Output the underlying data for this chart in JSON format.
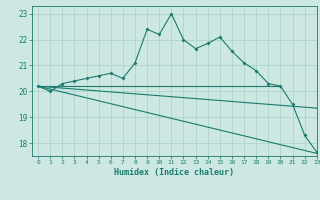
{
  "xlabel": "Humidex (Indice chaleur)",
  "bg_color": "#cde8e2",
  "line_color": "#1a7a6e",
  "grid_color": "#aed4cc",
  "xlim": [
    -0.5,
    23
  ],
  "ylim": [
    17.5,
    23.3
  ],
  "xticks": [
    0,
    1,
    2,
    3,
    4,
    5,
    6,
    7,
    8,
    9,
    10,
    11,
    12,
    13,
    14,
    15,
    16,
    17,
    18,
    19,
    20,
    21,
    22,
    23
  ],
  "yticks": [
    18,
    19,
    20,
    21,
    22,
    23
  ],
  "line1_x": [
    0,
    1,
    2,
    3,
    4,
    5,
    6,
    7,
    8,
    9,
    10,
    11,
    12,
    13,
    14,
    15,
    16,
    17,
    18,
    19,
    20,
    21,
    22,
    23
  ],
  "line1_y": [
    20.2,
    20.0,
    20.3,
    20.4,
    20.5,
    20.6,
    20.7,
    20.5,
    21.1,
    22.4,
    22.2,
    23.0,
    22.0,
    21.65,
    21.85,
    22.1,
    21.55,
    21.1,
    20.8,
    20.3,
    20.2,
    19.5,
    18.3,
    17.65
  ],
  "line2_x": [
    0,
    20
  ],
  "line2_y": [
    20.2,
    20.2
  ],
  "line3_x": [
    0,
    23
  ],
  "line3_y": [
    20.2,
    17.6
  ],
  "line4_x": [
    0,
    23
  ],
  "line4_y": [
    20.2,
    19.35
  ]
}
